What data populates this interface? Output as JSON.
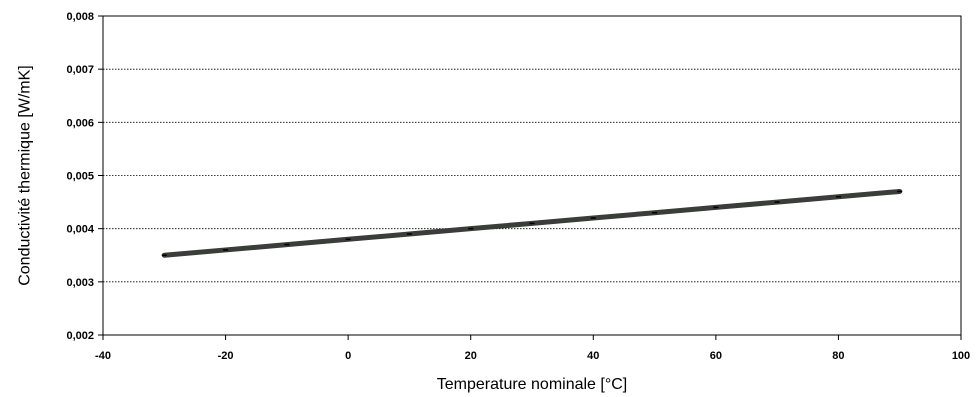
{
  "chart_data": {
    "type": "line",
    "title": "",
    "xlabel": "Temperature nominale [°C]",
    "ylabel": "Conductivité thermique  [W/mK]",
    "xlim": [
      -40,
      100
    ],
    "ylim": [
      0.002,
      0.008
    ],
    "xticks": [
      -40,
      -20,
      0,
      20,
      40,
      60,
      80,
      100
    ],
    "xtick_labels": [
      "-40",
      "-20",
      "0",
      "20",
      "40",
      "60",
      "80",
      "100"
    ],
    "yticks": [
      0.002,
      0.003,
      0.004,
      0.005,
      0.006,
      0.007,
      0.008
    ],
    "ytick_labels": [
      "0,002",
      "0,003",
      "0,004",
      "0,005",
      "0,006",
      "0,007",
      "0,008"
    ],
    "grid": "horizontal dotted",
    "legend": "none",
    "series": [
      {
        "color": "#3a3d3a",
        "x": [
          -30,
          -20,
          -10,
          0,
          10,
          20,
          30,
          40,
          50,
          60,
          70,
          80,
          90
        ],
        "y": [
          0.0035,
          0.0036,
          0.0037,
          0.0038,
          0.0039,
          0.004,
          0.0041,
          0.0042,
          0.0043,
          0.0044,
          0.0045,
          0.0046,
          0.0047
        ]
      }
    ]
  }
}
